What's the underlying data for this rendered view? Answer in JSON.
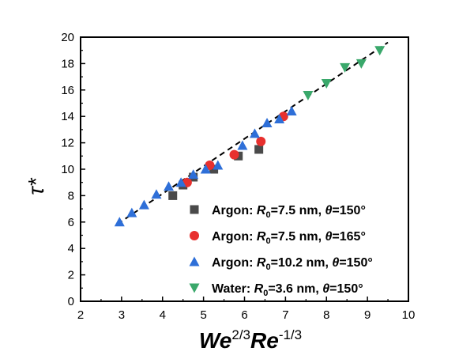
{
  "chart_data": {
    "type": "scatter",
    "xlabel": {
      "base1": "We",
      "sup1": "2/3",
      "base2": "Re",
      "sup2": "-1/3"
    },
    "ylabel": "τ*",
    "xlim": [
      2,
      10
    ],
    "ylim": [
      0,
      20
    ],
    "xticks": [
      2,
      3,
      4,
      5,
      6,
      7,
      8,
      9,
      10
    ],
    "yticks": [
      0,
      2,
      4,
      6,
      8,
      10,
      12,
      14,
      16,
      18,
      20
    ],
    "grid": false,
    "legend_position": "bottom-right",
    "series": [
      {
        "marker": "square",
        "color": "#4a4a4a",
        "label": {
          "pre": "Argon: ",
          "var": "R",
          "sub": "0",
          "mid": "=7.5 nm, ",
          "theta": "θ",
          "post": "=150°"
        },
        "x": [
          4.25,
          4.5,
          4.75,
          5.25,
          5.85,
          6.35
        ],
        "y": [
          8.0,
          8.8,
          9.4,
          10.0,
          11.0,
          11.5
        ]
      },
      {
        "marker": "circle",
        "color": "#e8302e",
        "label": {
          "pre": "Argon: ",
          "var": "R",
          "sub": "0",
          "mid": "=7.5 nm, ",
          "theta": "θ",
          "post": "=165°"
        },
        "x": [
          4.6,
          5.15,
          5.75,
          6.4,
          6.95
        ],
        "y": [
          9.0,
          10.3,
          11.1,
          12.1,
          14.0
        ]
      },
      {
        "marker": "triangle-up",
        "color": "#2e6fd8",
        "label": {
          "pre": "Argon: ",
          "var": "R",
          "sub": "0",
          "mid": "=10.2 nm, ",
          "theta": "θ",
          "post": "=150°"
        },
        "x": [
          2.95,
          3.25,
          3.55,
          3.85,
          4.15,
          4.45,
          4.75,
          5.05,
          5.35,
          5.95,
          6.25,
          6.55,
          6.85,
          7.15
        ],
        "y": [
          6.0,
          6.7,
          7.3,
          8.1,
          8.7,
          9.0,
          9.6,
          10.0,
          10.3,
          11.8,
          12.7,
          13.5,
          13.8,
          14.4
        ]
      },
      {
        "marker": "triangle-down",
        "color": "#3aa86b",
        "label": {
          "pre": "Water: ",
          "var": "R",
          "sub": "0",
          "mid": "=3.6 nm, ",
          "theta": "θ",
          "post": "=150°"
        },
        "x": [
          7.55,
          8.0,
          8.45,
          8.85,
          9.3
        ],
        "y": [
          15.6,
          16.5,
          17.7,
          18.0,
          19.0
        ]
      }
    ],
    "fit_line": {
      "style": "dashed",
      "color": "#000000",
      "x": [
        2.9,
        9.5
      ],
      "y": [
        5.85,
        19.6
      ]
    }
  }
}
